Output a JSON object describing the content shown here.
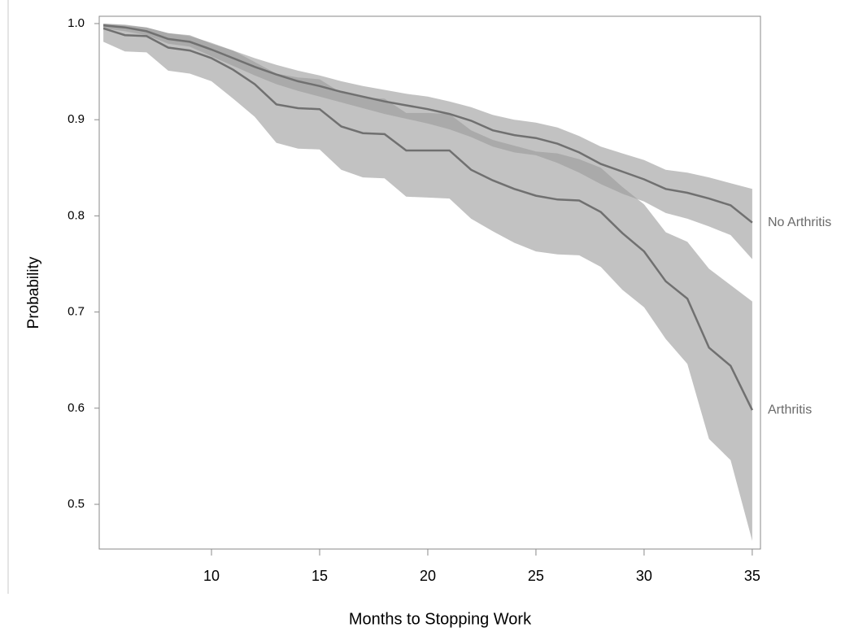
{
  "chart_data": {
    "type": "line",
    "y_label": "Probability",
    "x_label": "Months to Stopping Work",
    "x": [
      5,
      6,
      7,
      8,
      9,
      10,
      11,
      12,
      13,
      14,
      15,
      16,
      17,
      18,
      19,
      20,
      21,
      22,
      23,
      24,
      25,
      26,
      27,
      28,
      29,
      30,
      31,
      32,
      33,
      34,
      35
    ],
    "series": [
      {
        "name": "No Arthritis",
        "color": "#707070",
        "band_color": "#9a9a9a",
        "values": [
          0.998,
          0.996,
          0.992,
          0.984,
          0.981,
          0.973,
          0.964,
          0.955,
          0.947,
          0.94,
          0.935,
          0.929,
          0.924,
          0.919,
          0.915,
          0.911,
          0.906,
          0.899,
          0.889,
          0.884,
          0.881,
          0.875,
          0.866,
          0.854,
          0.846,
          0.838,
          0.828,
          0.824,
          0.818,
          0.811,
          0.793
        ],
        "lower": [
          0.995,
          0.992,
          0.988,
          0.979,
          0.976,
          0.966,
          0.956,
          0.946,
          0.937,
          0.93,
          0.924,
          0.918,
          0.912,
          0.906,
          0.901,
          0.896,
          0.89,
          0.882,
          0.872,
          0.866,
          0.863,
          0.855,
          0.845,
          0.833,
          0.823,
          0.815,
          0.803,
          0.797,
          0.789,
          0.78,
          0.755
        ],
        "upper": [
          1.0,
          0.999,
          0.996,
          0.99,
          0.987,
          0.98,
          0.972,
          0.964,
          0.957,
          0.951,
          0.946,
          0.94,
          0.935,
          0.931,
          0.927,
          0.924,
          0.919,
          0.913,
          0.905,
          0.9,
          0.897,
          0.892,
          0.883,
          0.872,
          0.865,
          0.858,
          0.848,
          0.845,
          0.84,
          0.834,
          0.828
        ]
      },
      {
        "name": "Arthritis",
        "color": "#707070",
        "band_color": "#9a9a9a",
        "values": [
          0.995,
          0.988,
          0.987,
          0.975,
          0.972,
          0.964,
          0.952,
          0.937,
          0.916,
          0.912,
          0.911,
          0.893,
          0.886,
          0.885,
          0.868,
          0.868,
          0.868,
          0.848,
          0.837,
          0.828,
          0.821,
          0.817,
          0.816,
          0.804,
          0.782,
          0.763,
          0.732,
          0.714,
          0.663,
          0.644,
          0.598
        ],
        "lower": [
          0.981,
          0.971,
          0.97,
          0.951,
          0.948,
          0.94,
          0.922,
          0.903,
          0.876,
          0.87,
          0.869,
          0.848,
          0.84,
          0.839,
          0.82,
          0.819,
          0.818,
          0.797,
          0.784,
          0.772,
          0.763,
          0.76,
          0.759,
          0.747,
          0.723,
          0.705,
          0.672,
          0.646,
          0.568,
          0.546,
          0.462
        ],
        "upper": [
          1.0,
          0.998,
          0.996,
          0.99,
          0.988,
          0.979,
          0.972,
          0.96,
          0.948,
          0.944,
          0.942,
          0.928,
          0.923,
          0.922,
          0.907,
          0.907,
          0.906,
          0.889,
          0.879,
          0.873,
          0.867,
          0.865,
          0.859,
          0.85,
          0.83,
          0.812,
          0.783,
          0.773,
          0.745,
          0.728,
          0.711
        ]
      }
    ],
    "xlim": [
      4.81,
      35.38
    ],
    "ylim": [
      0.4535,
      1.0076
    ],
    "xticks": [
      10,
      15,
      20,
      25,
      30,
      35
    ],
    "yticks": [
      0.5,
      0.6,
      0.7,
      0.8,
      0.9,
      {
        "value": 1,
        "label": "1.0"
      }
    ]
  }
}
